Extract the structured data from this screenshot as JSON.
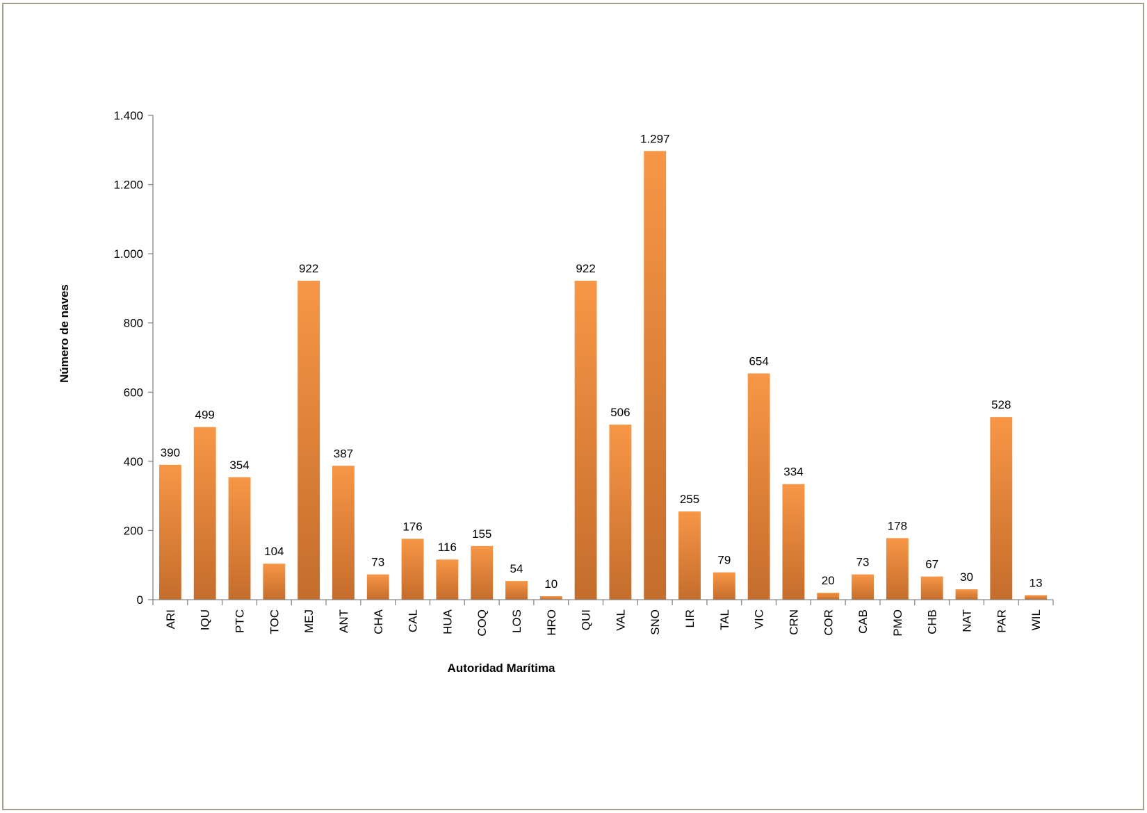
{
  "chart_data": {
    "type": "bar",
    "title": "",
    "xlabel": "Autoridad Marítima",
    "ylabel": "Número de naves",
    "ylim": [
      0,
      1400
    ],
    "yticks": [
      0,
      200,
      400,
      600,
      800,
      1000,
      1200,
      1400
    ],
    "ytick_labels": [
      "0",
      "200",
      "400",
      "600",
      "800",
      "1.000",
      "1.200",
      "1.400"
    ],
    "grid": false,
    "legend": "none",
    "bar_color_light": "#f79646",
    "bar_color_dark": "#c46d2c",
    "categories": [
      "ARI",
      "IQU",
      "PTC",
      "TOC",
      "MEJ",
      "ANT",
      "CHA",
      "CAL",
      "HUA",
      "COQ",
      "LOS",
      "HRO",
      "QUI",
      "VAL",
      "SNO",
      "LIR",
      "TAL",
      "VIC",
      "CRN",
      "COR",
      "CAB",
      "PMO",
      "CHB",
      "NAT",
      "PAR",
      "WIL"
    ],
    "values": [
      390,
      499,
      354,
      104,
      922,
      387,
      73,
      176,
      116,
      155,
      54,
      10,
      922,
      506,
      1297,
      255,
      79,
      654,
      334,
      20,
      73,
      178,
      67,
      30,
      528,
      13
    ],
    "value_labels": [
      "390",
      "499",
      "354",
      "104",
      "922",
      "387",
      "73",
      "176",
      "116",
      "155",
      "54",
      "10",
      "922",
      "506",
      "1.297",
      "255",
      "79",
      "654",
      "334",
      "20",
      "73",
      "178",
      "67",
      "30",
      "528",
      "13"
    ]
  }
}
